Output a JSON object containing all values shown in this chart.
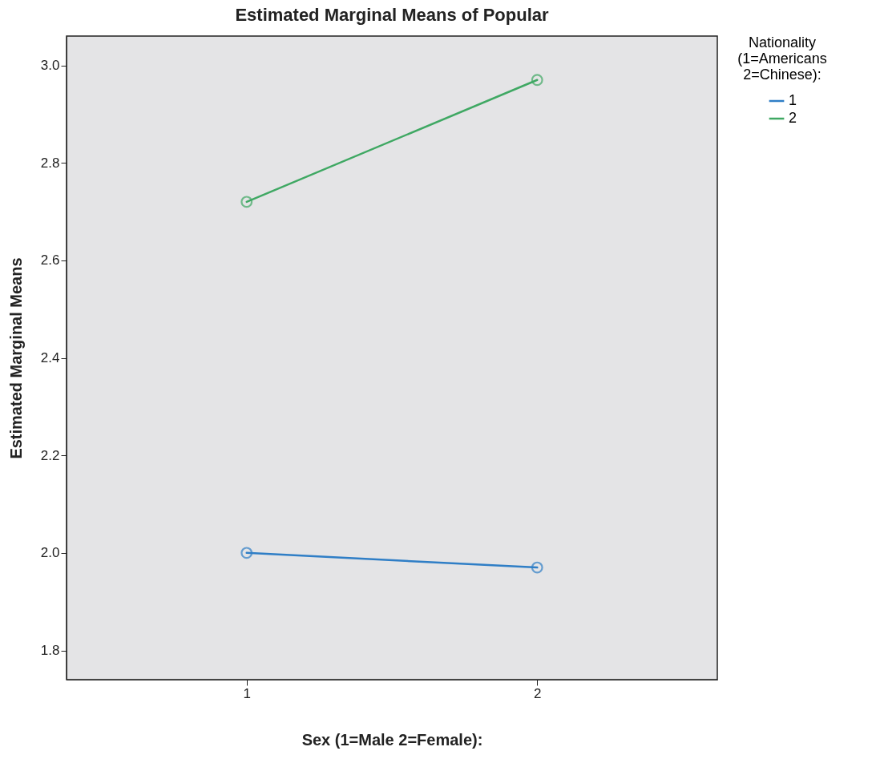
{
  "chart_data": {
    "type": "line",
    "title": "Estimated Marginal Means of Popular",
    "xlabel": "Sex (1=Male 2=Female):",
    "ylabel": "Estimated Marginal Means",
    "legend_title": "Nationality (1=Americans 2=Chinese):",
    "categories": [
      "1",
      "2"
    ],
    "series": [
      {
        "name": "1",
        "color": "#2f7ec6",
        "values": [
          2.0,
          1.97
        ]
      },
      {
        "name": "2",
        "color": "#3fa863",
        "values": [
          2.72,
          2.97
        ]
      }
    ],
    "ylim": [
      1.74,
      3.06
    ],
    "yticks": [
      1.8,
      {
        "value": 2,
        "label": "2.0"
      },
      2.2,
      2.4,
      2.6,
      2.8,
      {
        "value": 3,
        "label": "3.0"
      }
    ],
    "grid": false,
    "legend": "top right",
    "marker": "circle",
    "line_style": "solid"
  }
}
